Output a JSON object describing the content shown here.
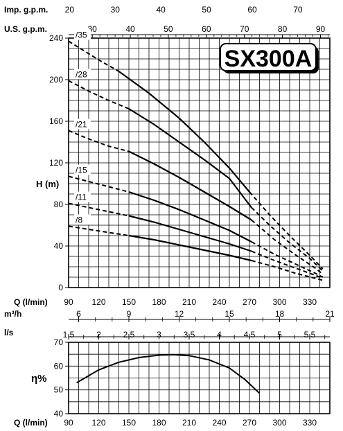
{
  "chart_data": [
    {
      "type": "line",
      "title": "SX300A",
      "ylabel": "H (m)",
      "xlabel": "Q (l/min)",
      "xlim": [
        90,
        350
      ],
      "ylim": [
        0,
        240
      ],
      "x_ticks": [
        90,
        120,
        150,
        180,
        210,
        240,
        270,
        300,
        330
      ],
      "y_ticks": [
        0,
        40,
        80,
        120,
        160,
        200,
        240
      ],
      "grid": true,
      "line_color": "#000000",
      "background": "#ffffff",
      "secondary_axes": [
        {
          "label": "Imp. g.p.m.",
          "factor": 0.21997,
          "ticks": [
            20,
            30,
            40,
            50,
            60,
            70
          ]
        },
        {
          "label": "U.S. g.p.m.",
          "factor": 0.264172,
          "ticks": [
            30,
            40,
            50,
            60,
            70,
            80,
            90
          ]
        },
        {
          "label": "m³/h",
          "factor": 0.06,
          "ticks": [
            6,
            9,
            12,
            15,
            18,
            21
          ]
        },
        {
          "label": "l/s",
          "factor": 0.0166667,
          "ticks": [
            "1,5",
            "2",
            "2,5",
            "3",
            "3,5",
            "4",
            "4,5",
            "5",
            "5,5"
          ],
          "tick_values": [
            1.5,
            2,
            2.5,
            3,
            3.5,
            4,
            4.5,
            5,
            5.5
          ]
        }
      ],
      "series": [
        {
          "name": "/35",
          "dashed_before": [
            [
              90,
              237
            ],
            [
              105,
              228
            ],
            [
              120,
              219
            ],
            [
              140,
              208
            ]
          ],
          "solid": [
            [
              140,
              208
            ],
            [
              170,
              187
            ],
            [
              200,
              163
            ],
            [
              225,
              140
            ],
            [
              250,
              115
            ],
            [
              270,
              92
            ]
          ],
          "dashed_after": [
            [
              270,
              92
            ],
            [
              290,
              70
            ],
            [
              310,
              50
            ],
            [
              330,
              31
            ],
            [
              343,
              18
            ]
          ]
        },
        {
          "name": "/28",
          "dashed_before": [
            [
              90,
              199
            ],
            [
              110,
              189
            ],
            [
              130,
              180
            ],
            [
              150,
              172
            ]
          ],
          "solid": [
            [
              150,
              172
            ],
            [
              175,
              157
            ],
            [
              200,
              140
            ],
            [
              225,
              123
            ],
            [
              250,
              105
            ],
            [
              272,
              77
            ]
          ],
          "dashed_after": [
            [
              272,
              77
            ],
            [
              290,
              60
            ],
            [
              310,
              43
            ],
            [
              330,
              28
            ],
            [
              343,
              16
            ]
          ]
        },
        {
          "name": "/21",
          "dashed_before": [
            [
              90,
              151
            ],
            [
              110,
              143
            ],
            [
              130,
              136
            ],
            [
              150,
              131
            ]
          ],
          "solid": [
            [
              150,
              131
            ],
            [
              175,
              119
            ],
            [
              200,
              106
            ],
            [
              225,
              92
            ],
            [
              250,
              78
            ],
            [
              272,
              65
            ]
          ],
          "dashed_after": [
            [
              272,
              65
            ],
            [
              295,
              46
            ],
            [
              315,
              32
            ],
            [
              335,
              19
            ],
            [
              343,
              13
            ]
          ]
        },
        {
          "name": "/15",
          "dashed_before": [
            [
              90,
              107
            ],
            [
              110,
              102
            ],
            [
              130,
              97
            ],
            [
              150,
              92
            ]
          ],
          "solid": [
            [
              150,
              92
            ],
            [
              175,
              84
            ],
            [
              200,
              75
            ],
            [
              225,
              65
            ],
            [
              250,
              55
            ],
            [
              272,
              44
            ]
          ],
          "dashed_after": [
            [
              272,
              44
            ],
            [
              295,
              32
            ],
            [
              315,
              23
            ],
            [
              335,
              14
            ],
            [
              343,
              10
            ]
          ]
        },
        {
          "name": "/11",
          "dashed_before": [
            [
              90,
              81
            ],
            [
              110,
              77
            ],
            [
              130,
              73
            ],
            [
              150,
              69
            ]
          ],
          "solid": [
            [
              150,
              69
            ],
            [
              175,
              63
            ],
            [
              200,
              56
            ],
            [
              225,
              49
            ],
            [
              250,
              42
            ],
            [
              272,
              35
            ]
          ],
          "dashed_after": [
            [
              272,
              35
            ],
            [
              295,
              26
            ],
            [
              315,
              19
            ],
            [
              335,
              12
            ],
            [
              343,
              9
            ]
          ]
        },
        {
          "name": "/8",
          "dashed_before": [
            [
              90,
              59
            ],
            [
              110,
              56
            ],
            [
              130,
              53
            ],
            [
              150,
              50
            ]
          ],
          "solid": [
            [
              150,
              50
            ],
            [
              175,
              46
            ],
            [
              200,
              41
            ],
            [
              225,
              36
            ],
            [
              250,
              31
            ],
            [
              272,
              26
            ]
          ],
          "dashed_after": [
            [
              272,
              26
            ],
            [
              295,
              20
            ],
            [
              315,
              14
            ],
            [
              335,
              9
            ],
            [
              343,
              7
            ]
          ]
        }
      ]
    },
    {
      "type": "line",
      "ylabel": "η%",
      "xlabel": "Q (l/min)",
      "xlim": [
        90,
        350
      ],
      "ylim": [
        40,
        70
      ],
      "x_ticks": [
        90,
        120,
        150,
        180,
        210,
        240,
        270,
        300,
        330
      ],
      "y_ticks": [
        40,
        50,
        60,
        70
      ],
      "grid": true,
      "series": [
        {
          "points": [
            [
              98,
              53
            ],
            [
              120,
              58.4
            ],
            [
              140,
              61.6
            ],
            [
              160,
              63.6
            ],
            [
              180,
              64.6
            ],
            [
              195,
              64.8
            ],
            [
              210,
              64.4
            ],
            [
              230,
              62.6
            ],
            [
              250,
              59.2
            ],
            [
              265,
              54.5
            ],
            [
              280,
              48.6
            ]
          ]
        }
      ]
    }
  ]
}
